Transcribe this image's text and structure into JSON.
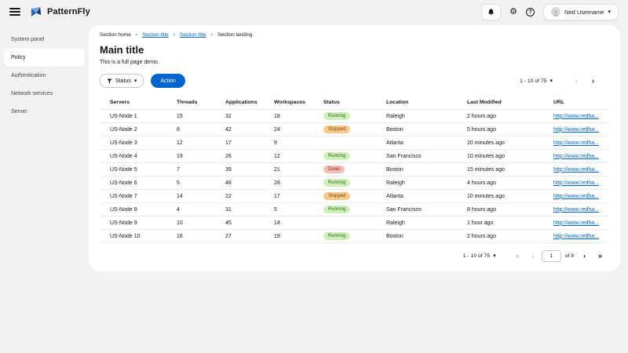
{
  "masthead": {
    "brand": "PatternFly",
    "user": {
      "name": "Ned Username"
    }
  },
  "sidebar": {
    "items": [
      {
        "label": "System panel",
        "selected": false
      },
      {
        "label": "Policy",
        "selected": true
      },
      {
        "label": "Authentication",
        "selected": false
      },
      {
        "label": "Network services",
        "selected": false
      },
      {
        "label": "Server",
        "selected": false
      }
    ]
  },
  "breadcrumb": {
    "items": [
      {
        "label": "Section home",
        "link": false
      },
      {
        "label": "Section title",
        "link": true
      },
      {
        "label": "Section title",
        "link": true
      },
      {
        "label": "Section landing",
        "link": false
      }
    ]
  },
  "page": {
    "title": "Main title",
    "subtitle": "This is a full page demo."
  },
  "toolbar": {
    "filter_button": "Status",
    "action_button": "Action"
  },
  "pagination_top": {
    "range": "1 - 10 of 75"
  },
  "pagination_bottom": {
    "range": "1 - 10 of 75",
    "page_input": "1",
    "pages_label": "of 8"
  },
  "table": {
    "columns": [
      "Servers",
      "Threads",
      "Applications",
      "Workspaces",
      "Status",
      "Location",
      "Last Modified",
      "URL"
    ],
    "rows": [
      {
        "server": "US-Node 1",
        "threads": "15",
        "applications": "32",
        "workspaces": "18",
        "status": "Running",
        "location": "Raleigh",
        "modified": "2 hours ago",
        "url": "http://www.redha..."
      },
      {
        "server": "US-Node 2",
        "threads": "8",
        "applications": "42",
        "workspaces": "24",
        "status": "Stopped",
        "location": "Boston",
        "modified": "5 hours ago",
        "url": "http://www.redha..."
      },
      {
        "server": "US-Node 3",
        "threads": "12",
        "applications": "17",
        "workspaces": "9",
        "status": "",
        "location": "Atlanta",
        "modified": "20 minutes ago",
        "url": "http://www.redha..."
      },
      {
        "server": "US-Node 4",
        "threads": "19",
        "applications": "26",
        "workspaces": "12",
        "status": "Running",
        "location": "San Francisco",
        "modified": "10 minutes ago",
        "url": "http://www.redha..."
      },
      {
        "server": "US-Node 5",
        "threads": "7",
        "applications": "39",
        "workspaces": "21",
        "status": "Down",
        "location": "Boston",
        "modified": "15 minutes ago",
        "url": "http://www.redha..."
      },
      {
        "server": "US-Node 6",
        "threads": "5",
        "applications": "48",
        "workspaces": "28",
        "status": "Running",
        "location": "Raleigh",
        "modified": "4 hours ago",
        "url": "http://www.redha..."
      },
      {
        "server": "US-Node 7",
        "threads": "14",
        "applications": "22",
        "workspaces": "17",
        "status": "Stopped",
        "location": "Atlanta",
        "modified": "10 minutes ago",
        "url": "http://www.redha..."
      },
      {
        "server": "US-Node 8",
        "threads": "4",
        "applications": "31",
        "workspaces": "5",
        "status": "Running",
        "location": "San Francisco",
        "modified": "8 hours ago",
        "url": "http://www.redha..."
      },
      {
        "server": "US-Node 9",
        "threads": "10",
        "applications": "45",
        "workspaces": "14",
        "status": "",
        "location": "Raleigh",
        "modified": "1 hour ago",
        "url": "http://www.redha..."
      },
      {
        "server": "US-Node 10",
        "threads": "16",
        "applications": "27",
        "workspaces": "19",
        "status": "Running",
        "location": "Boston",
        "modified": "2 hours ago",
        "url": "http://www.redha..."
      }
    ]
  },
  "colors": {
    "primary": "#0066cc",
    "status": {
      "Running": {
        "bg": "#cdf1b7",
        "fg": "#3a662a"
      },
      "Stopped": {
        "bg": "#f8c98a",
        "fg": "#7c4a10"
      },
      "Down": {
        "bg": "#f5bcb5",
        "fg": "#89201a"
      }
    }
  },
  "icons": {
    "caret_down": "▾",
    "separator": "›",
    "nav_first": "«",
    "nav_prev": "‹",
    "nav_next": "›",
    "nav_last": "»",
    "gear": "⚙"
  }
}
